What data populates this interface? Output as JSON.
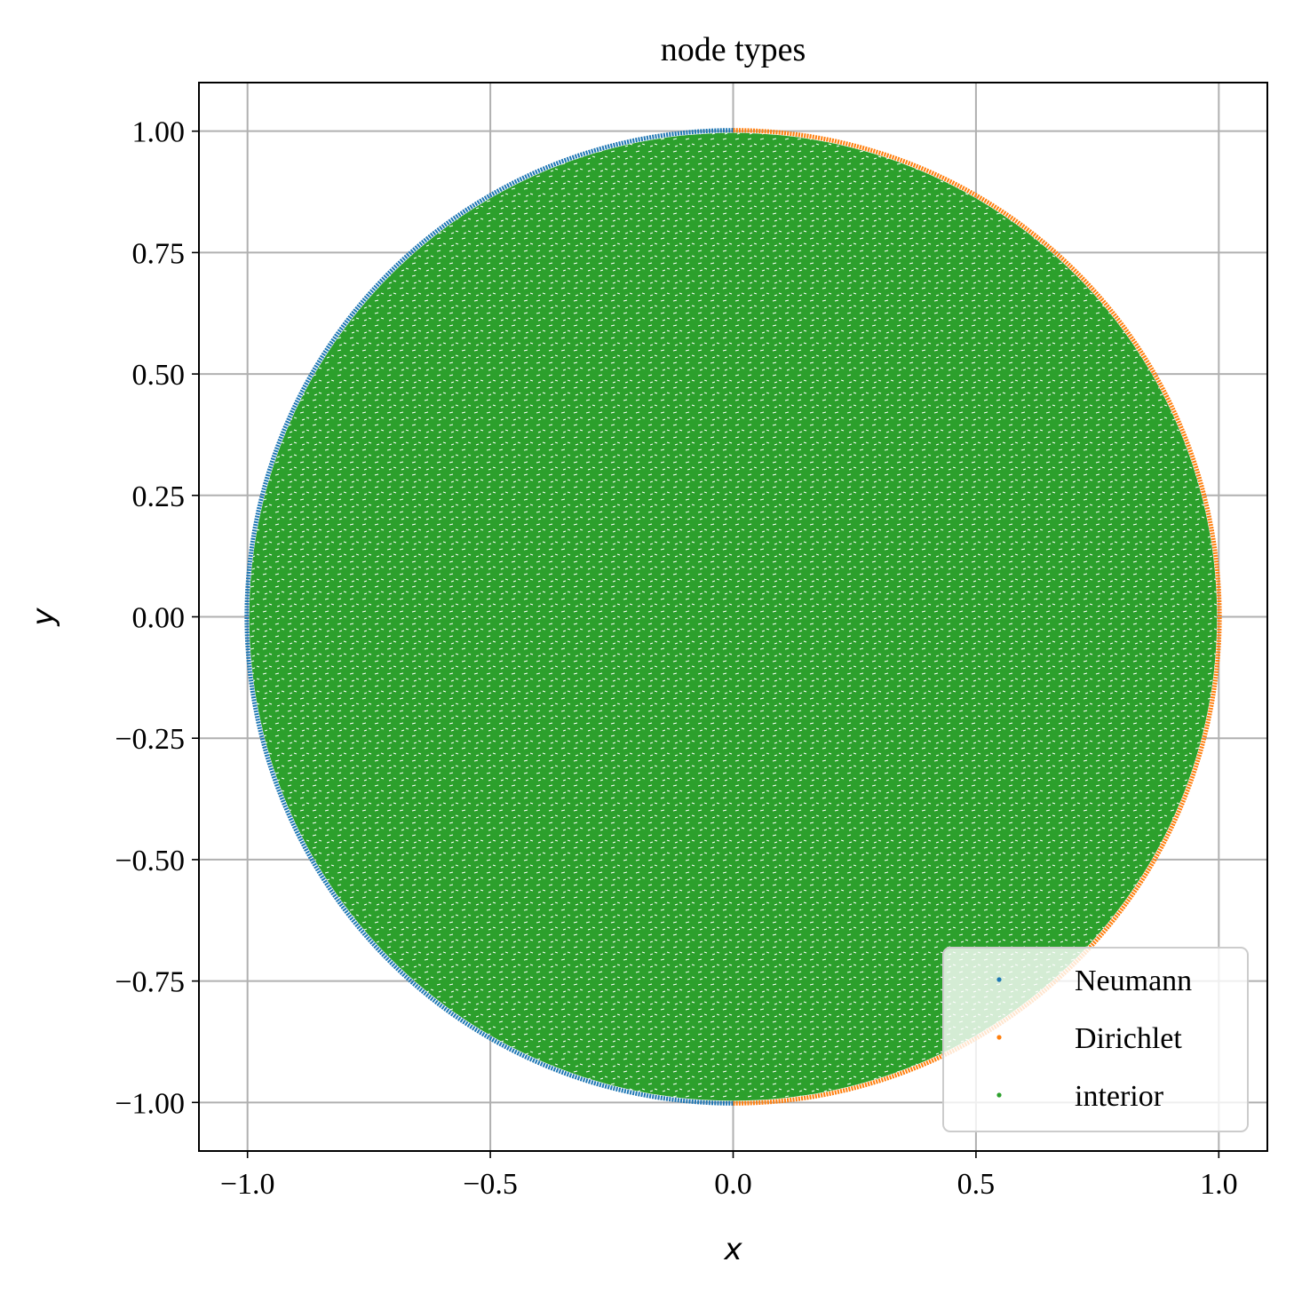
{
  "chart_data": {
    "type": "scatter",
    "title": "node types",
    "xlabel": "x",
    "ylabel": "y",
    "xlim": [
      -1.1,
      1.1
    ],
    "ylim": [
      -1.1,
      1.1
    ],
    "xticks": [
      -1.0,
      -0.5,
      0.0,
      0.5,
      1.0
    ],
    "xtick_labels": [
      "−1.0",
      "−0.5",
      "0.0",
      "0.5",
      "1.0"
    ],
    "yticks": [
      1.0,
      0.75,
      0.5,
      0.25,
      0.0,
      -0.25,
      -0.5,
      -0.75,
      -1.0
    ],
    "ytick_labels": [
      "1.00",
      "0.75",
      "0.50",
      "0.25",
      "0.00",
      "−0.25",
      "−0.50",
      "−0.75",
      "−1.00"
    ],
    "grid": true,
    "legend_location": "lower-right",
    "domain": {
      "shape": "unit disk",
      "center": [
        0,
        0
      ],
      "radius": 1.0
    },
    "series": [
      {
        "name": "Neumann",
        "color": "#1f77b4",
        "region": "boundary",
        "angle_range_deg": [
          90,
          270
        ]
      },
      {
        "name": "Dirichlet",
        "color": "#ff7f0e",
        "region": "boundary",
        "angle_range_deg": [
          -90,
          90
        ]
      },
      {
        "name": "interior",
        "color": "#2ca02c",
        "region": "interior"
      }
    ]
  }
}
